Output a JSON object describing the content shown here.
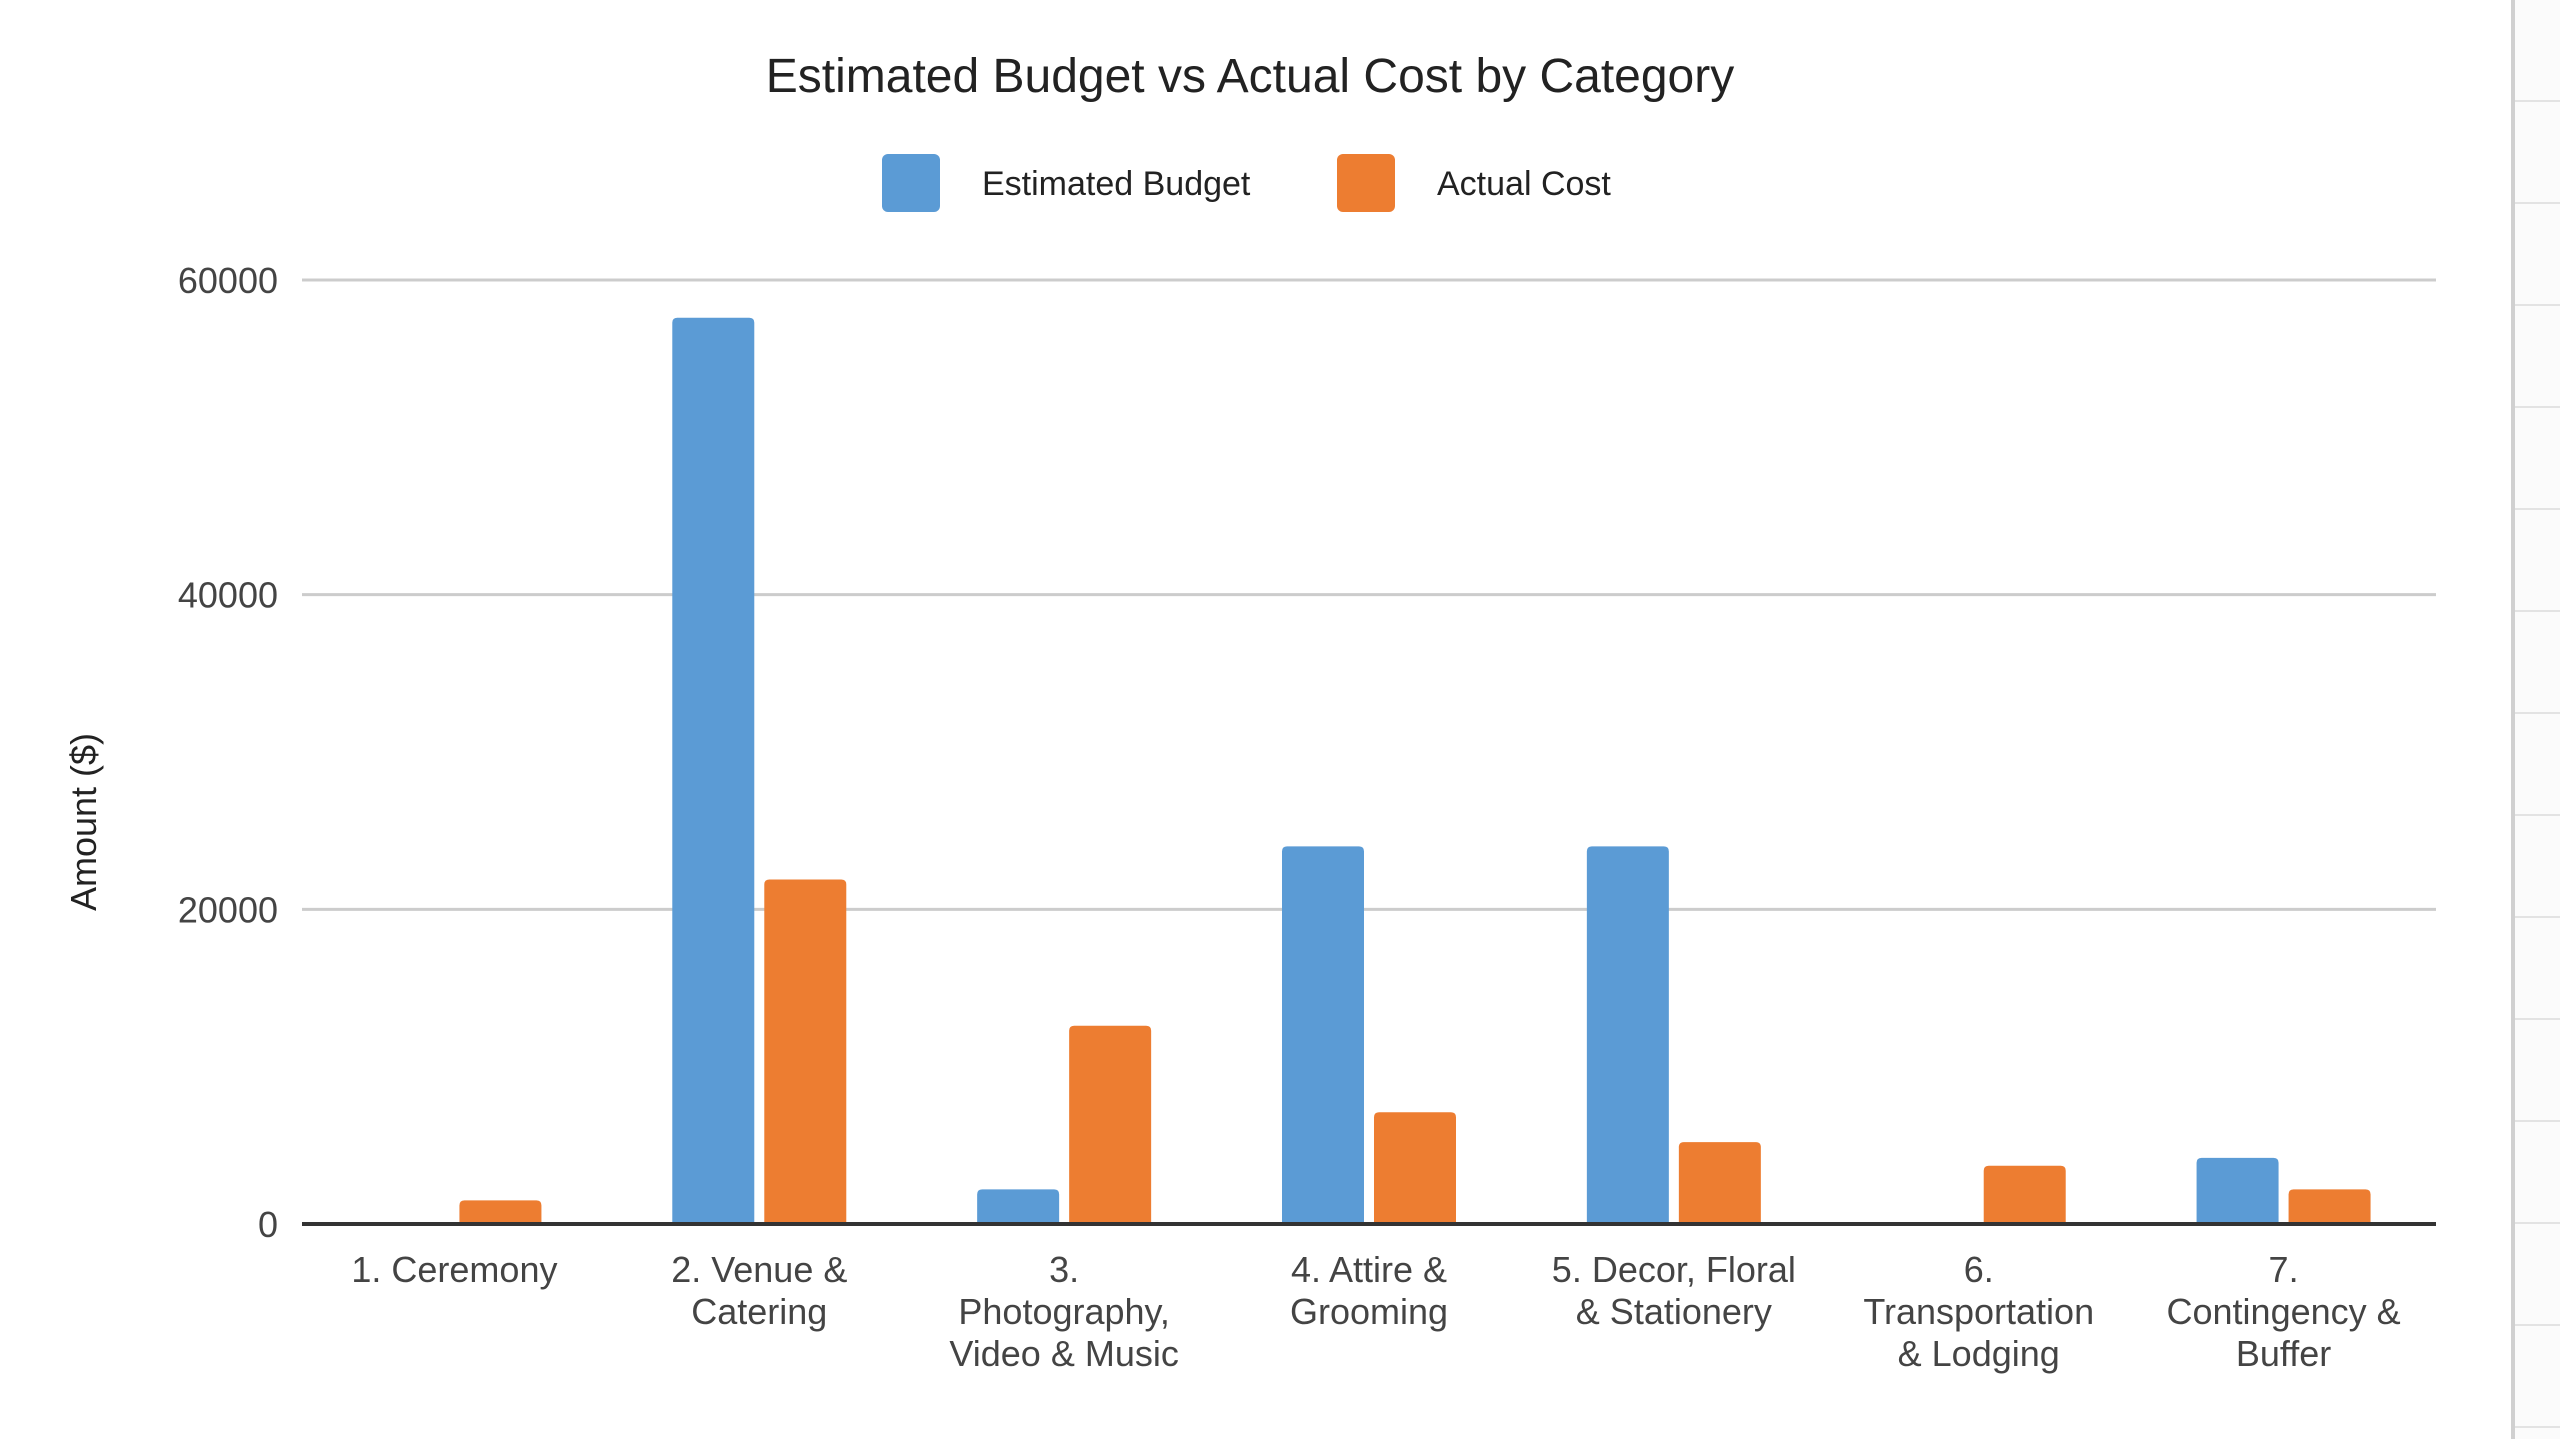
{
  "chart_data": {
    "type": "bar",
    "title": "Estimated Budget vs Actual Cost by Category",
    "xlabel": "",
    "ylabel": "Amount ($)",
    "ylim": [
      0,
      60000
    ],
    "yticks": [
      0,
      20000,
      40000,
      60000
    ],
    "grid": true,
    "legend_position": "top",
    "categories": [
      [
        "1. Ceremony"
      ],
      [
        "2. Venue &",
        "Catering"
      ],
      [
        "3.",
        "Photography,",
        "Video & Music"
      ],
      [
        "4. Attire &",
        "Grooming"
      ],
      [
        "5. Decor, Floral",
        "& Stationery"
      ],
      [
        "6.",
        "Transportation",
        "& Lodging"
      ],
      [
        "7.",
        "Contingency &",
        "Buffer"
      ]
    ],
    "series": [
      {
        "name": "Estimated Budget",
        "color": "#5b9bd5",
        "values": [
          0,
          57600,
          2200,
          24000,
          24000,
          0,
          4200
        ]
      },
      {
        "name": "Actual Cost",
        "color": "#ed7d31",
        "values": [
          1500,
          21900,
          12600,
          7100,
          5200,
          3700,
          2200
        ]
      }
    ]
  }
}
